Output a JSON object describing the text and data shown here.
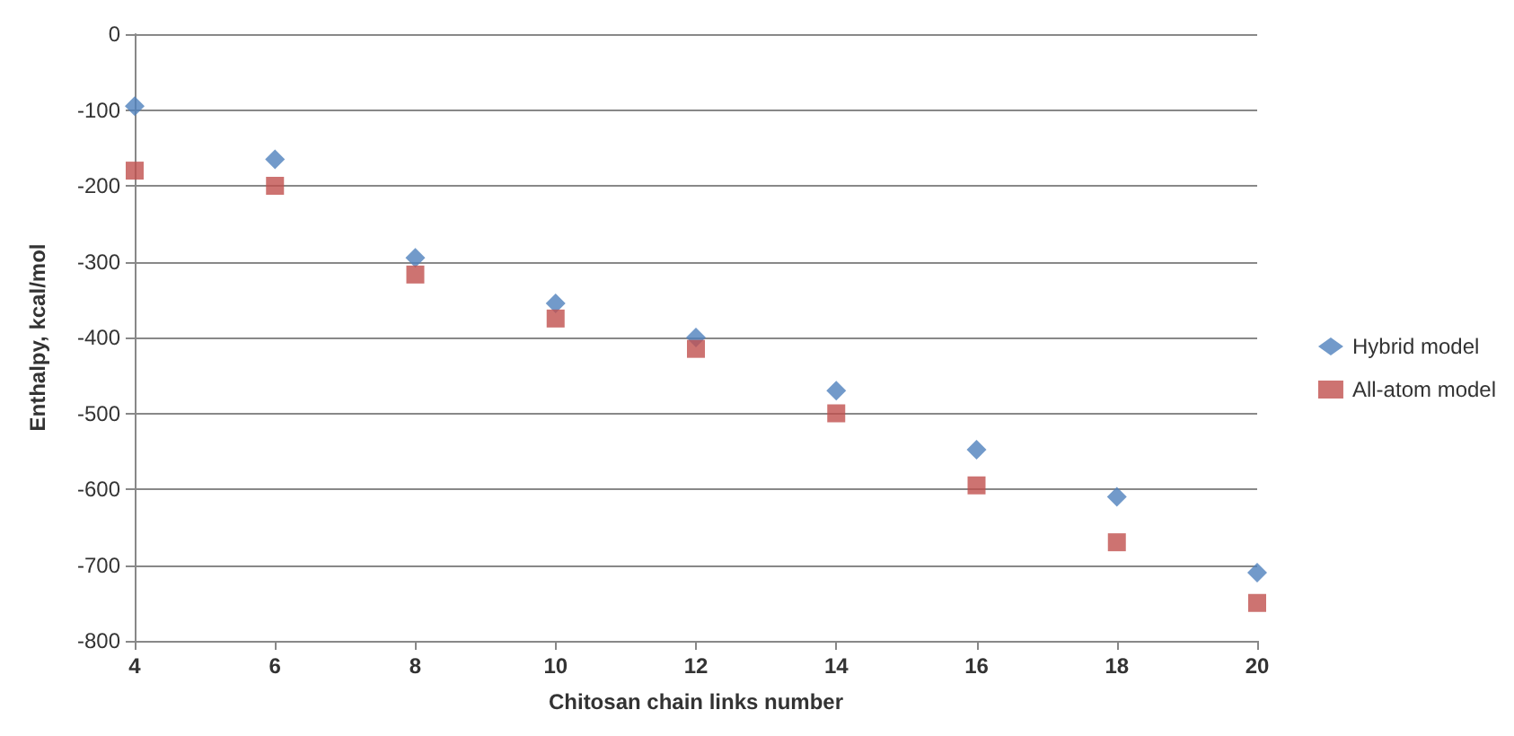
{
  "chart_data": {
    "type": "scatter",
    "xlabel": "Chitosan chain links number",
    "ylabel": "Enthalpy, kcal/mol",
    "x": [
      4,
      6,
      8,
      10,
      12,
      14,
      16,
      18,
      20
    ],
    "series": [
      {
        "name": "Hybrid model",
        "color": "#4f81bd",
        "marker": "diamond",
        "values": [
          -95,
          -165,
          -295,
          -355,
          -400,
          -470,
          -548,
          -610,
          -710
        ]
      },
      {
        "name": "All-atom model",
        "color": "#c0504d",
        "marker": "square",
        "values": [
          -180,
          -200,
          -317,
          -375,
          -415,
          -500,
          -595,
          -670,
          -750
        ]
      }
    ],
    "xlim": [
      4,
      20
    ],
    "xticks": [
      4,
      6,
      8,
      10,
      12,
      14,
      16,
      18,
      20
    ],
    "ylim": [
      -800,
      0
    ],
    "yticks": [
      -800,
      -700,
      -600,
      -500,
      -400,
      -300,
      -200,
      -100,
      0
    ],
    "grid": "y",
    "legend": "right"
  }
}
